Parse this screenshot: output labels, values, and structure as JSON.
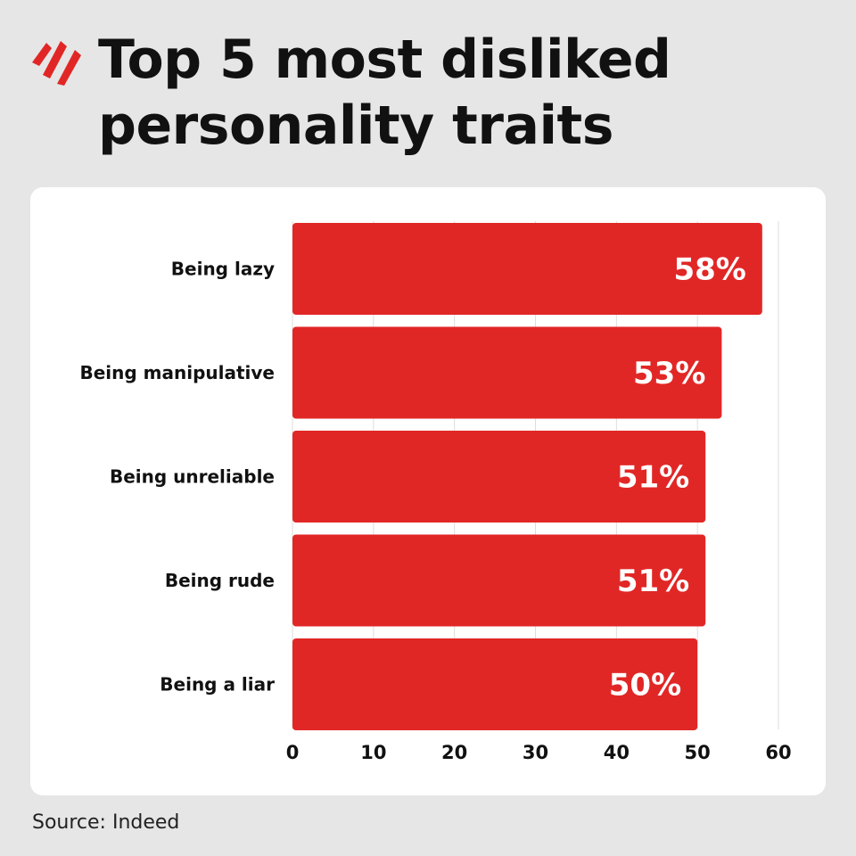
{
  "header": {
    "title_line1": "Top 5 most disliked",
    "title_line2": "personality traits",
    "logo_icon": "sbs-wave-logo-icon"
  },
  "source": "Source: Indeed",
  "colors": {
    "background": "#e6e6e6",
    "card": "#ffffff",
    "bar": "#e12726",
    "logo": "#e12726",
    "text": "#111111",
    "grid": "#dddddd"
  },
  "chart_data": {
    "type": "bar",
    "orientation": "horizontal",
    "title": "Top 5 most disliked personality traits",
    "categories": [
      "Being lazy",
      "Being manipulative",
      "Being unreliable",
      "Being rude",
      "Being a liar"
    ],
    "values": [
      58,
      53,
      51,
      51,
      50
    ],
    "value_labels": [
      "58%",
      "53%",
      "51%",
      "51%",
      "50%"
    ],
    "xlim": [
      0,
      60
    ],
    "xticks": [
      "0",
      "10",
      "20",
      "30",
      "40",
      "50",
      "60"
    ],
    "grid": true,
    "xlabel": "",
    "ylabel": ""
  }
}
